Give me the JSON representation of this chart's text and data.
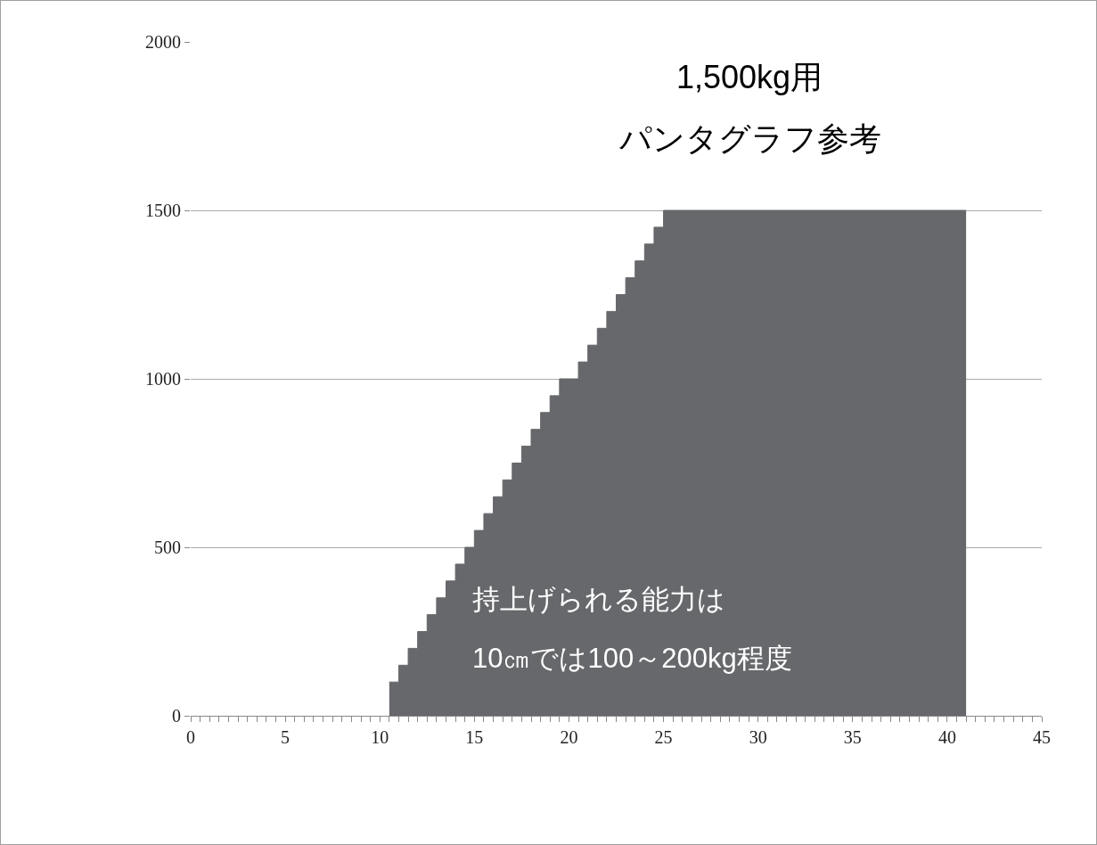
{
  "chart_data": {
    "type": "area",
    "line_style": "solid",
    "color": "#67686c",
    "x": [
      10.5,
      11,
      11,
      11.5,
      11.5,
      12,
      12,
      12.5,
      12.5,
      13,
      13,
      13.5,
      13.5,
      14,
      14,
      14.5,
      14.5,
      15,
      15,
      15.5,
      15.5,
      16,
      16,
      16.5,
      16.5,
      17,
      17,
      17.5,
      17.5,
      18,
      18,
      18.5,
      18.5,
      19,
      19,
      19.5,
      19.5,
      20,
      20,
      20.5,
      20.5,
      21,
      21,
      21.5,
      21.5,
      22,
      22,
      22.5,
      22.5,
      23,
      23,
      23.5,
      23.5,
      24,
      24,
      24.5,
      24.5,
      25,
      25,
      41
    ],
    "values": [
      100,
      100,
      150,
      150,
      200,
      200,
      250,
      250,
      300,
      300,
      350,
      350,
      400,
      400,
      450,
      450,
      500,
      500,
      550,
      550,
      600,
      600,
      650,
      650,
      700,
      700,
      750,
      750,
      800,
      800,
      850,
      850,
      900,
      900,
      950,
      950,
      1000,
      1000,
      1000,
      1000,
      1050,
      1050,
      1100,
      1100,
      1150,
      1150,
      1200,
      1200,
      1250,
      1250,
      1300,
      1300,
      1350,
      1350,
      1400,
      1400,
      1450,
      1450,
      1500,
      1500
    ],
    "xlim": [
      0,
      45
    ],
    "ylim": [
      0,
      2000
    ],
    "yticks": [
      0,
      500,
      1000,
      1500,
      2000
    ],
    "xticks": [
      0,
      {
        "value": 0.5,
        "label": null
      },
      {
        "value": 1,
        "label": null
      },
      {
        "value": 1.5,
        "label": null
      },
      {
        "value": 2,
        "label": null
      },
      {
        "value": 2.5,
        "label": null
      },
      {
        "value": 3,
        "label": null
      },
      {
        "value": 3.5,
        "label": null
      },
      {
        "value": 4,
        "label": null
      },
      {
        "value": 4.5,
        "label": null
      },
      5,
      {
        "value": 5.5,
        "label": null
      },
      {
        "value": 6,
        "label": null
      },
      {
        "value": 6.5,
        "label": null
      },
      {
        "value": 7,
        "label": null
      },
      {
        "value": 7.5,
        "label": null
      },
      {
        "value": 8,
        "label": null
      },
      {
        "value": 8.5,
        "label": null
      },
      {
        "value": 9,
        "label": null
      },
      {
        "value": 9.5,
        "label": null
      },
      10,
      {
        "value": 10.5,
        "label": null
      },
      {
        "value": 11,
        "label": null
      },
      {
        "value": 11.5,
        "label": null
      },
      {
        "value": 12,
        "label": null
      },
      {
        "value": 12.5,
        "label": null
      },
      {
        "value": 13,
        "label": null
      },
      {
        "value": 13.5,
        "label": null
      },
      {
        "value": 14,
        "label": null
      },
      {
        "value": 14.5,
        "label": null
      },
      15,
      {
        "value": 15.5,
        "label": null
      },
      {
        "value": 16,
        "label": null
      },
      {
        "value": 16.5,
        "label": null
      },
      {
        "value": 17,
        "label": null
      },
      {
        "value": 17.5,
        "label": null
      },
      {
        "value": 18,
        "label": null
      },
      {
        "value": 18.5,
        "label": null
      },
      {
        "value": 19,
        "label": null
      },
      {
        "value": 19.5,
        "label": null
      },
      20,
      {
        "value": 20.5,
        "label": null
      },
      {
        "value": 21,
        "label": null
      },
      {
        "value": 21.5,
        "label": null
      },
      {
        "value": 22,
        "label": null
      },
      {
        "value": 22.5,
        "label": null
      },
      {
        "value": 23,
        "label": null
      },
      {
        "value": 23.5,
        "label": null
      },
      {
        "value": 24,
        "label": null
      },
      {
        "value": 24.5,
        "label": null
      },
      25,
      {
        "value": 25.5,
        "label": null
      },
      {
        "value": 26,
        "label": null
      },
      {
        "value": 26.5,
        "label": null
      },
      {
        "value": 27,
        "label": null
      },
      {
        "value": 27.5,
        "label": null
      },
      {
        "value": 28,
        "label": null
      },
      {
        "value": 28.5,
        "label": null
      },
      {
        "value": 29,
        "label": null
      },
      {
        "value": 29.5,
        "label": null
      },
      30,
      {
        "value": 30.5,
        "label": null
      },
      {
        "value": 31,
        "label": null
      },
      {
        "value": 31.5,
        "label": null
      },
      {
        "value": 32,
        "label": null
      },
      {
        "value": 32.5,
        "label": null
      },
      {
        "value": 33,
        "label": null
      },
      {
        "value": 33.5,
        "label": null
      },
      {
        "value": 34,
        "label": null
      },
      {
        "value": 34.5,
        "label": null
      },
      35,
      {
        "value": 35.5,
        "label": null
      },
      {
        "value": 36,
        "label": null
      },
      {
        "value": 36.5,
        "label": null
      },
      {
        "value": 37,
        "label": null
      },
      {
        "value": 37.5,
        "label": null
      },
      {
        "value": 38,
        "label": null
      },
      {
        "value": 38.5,
        "label": null
      },
      {
        "value": 39,
        "label": null
      },
      {
        "value": 39.5,
        "label": null
      },
      40,
      {
        "value": 40.5,
        "label": null
      },
      {
        "value": 41,
        "label": null
      },
      {
        "value": 41.5,
        "label": null
      },
      {
        "value": 42,
        "label": null
      },
      {
        "value": 42.5,
        "label": null
      },
      {
        "value": 43,
        "label": null
      },
      {
        "value": 43.5,
        "label": null
      },
      {
        "value": 44,
        "label": null
      },
      {
        "value": 44.5,
        "label": null
      },
      45
    ],
    "grid": "y",
    "legend": false,
    "annotations": [
      "1,500kg用",
      "パンタグラフ参考",
      "持上げられる能力は",
      "10㎝では100～200kg程度"
    ]
  }
}
